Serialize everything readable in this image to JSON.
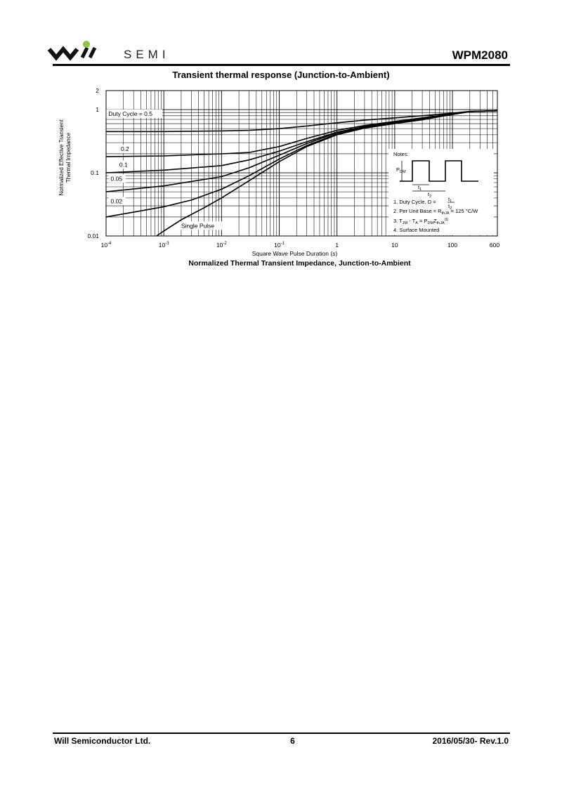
{
  "header": {
    "brand": "SEMI",
    "part_number": "WPM2080"
  },
  "section_title": "Transient thermal response (Junction-to-Ambient)",
  "chart_data": {
    "type": "line",
    "x_scale": "log",
    "y_scale": "log",
    "xlim": [
      0.0001,
      600
    ],
    "ylim": [
      0.01,
      2
    ],
    "xlabel": "Square Wave Pulse Duration (s)",
    "ylabel_lines": [
      "Normalized Effective Transient",
      "Thermal Impedance"
    ],
    "grid": true,
    "x_ticks": [
      {
        "value": 0.0001,
        "base": "10",
        "exp": "-4"
      },
      {
        "value": 0.001,
        "base": "10",
        "exp": "-3"
      },
      {
        "value": 0.01,
        "base": "10",
        "exp": "-2"
      },
      {
        "value": 0.1,
        "base": "10",
        "exp": "-1"
      },
      {
        "value": 1,
        "base": "1",
        "exp": ""
      },
      {
        "value": 10,
        "base": "10",
        "exp": ""
      },
      {
        "value": 100,
        "base": "100",
        "exp": ""
      },
      {
        "value": 600,
        "base": "600",
        "exp": ""
      }
    ],
    "y_ticks": [
      {
        "value": 2,
        "label": "2"
      },
      {
        "value": 1,
        "label": "1"
      },
      {
        "value": 0.1,
        "label": "0.1"
      },
      {
        "value": 0.01,
        "label": "0.01"
      }
    ],
    "series": [
      {
        "name": "Duty Cycle = 0.5",
        "x": [
          0.0001,
          0.001,
          0.01,
          0.03,
          0.1,
          0.3,
          1,
          3,
          10,
          30,
          100,
          200,
          600
        ],
        "y": [
          0.45,
          0.45,
          0.46,
          0.47,
          0.5,
          0.55,
          0.62,
          0.68,
          0.74,
          0.8,
          0.88,
          0.94,
          0.96
        ]
      },
      {
        "name": "0.2",
        "x": [
          0.0001,
          0.001,
          0.01,
          0.03,
          0.1,
          0.3,
          1,
          3,
          10,
          30,
          100,
          200,
          600
        ],
        "y": [
          0.18,
          0.185,
          0.2,
          0.21,
          0.26,
          0.35,
          0.47,
          0.56,
          0.65,
          0.74,
          0.86,
          0.93,
          0.96
        ]
      },
      {
        "name": "0.1",
        "x": [
          0.0001,
          0.001,
          0.01,
          0.03,
          0.1,
          0.3,
          1,
          3,
          10,
          30,
          100,
          200,
          600
        ],
        "y": [
          0.1,
          0.11,
          0.13,
          0.16,
          0.22,
          0.31,
          0.44,
          0.54,
          0.63,
          0.72,
          0.85,
          0.93,
          0.96
        ]
      },
      {
        "name": "0.05",
        "x": [
          0.0001,
          0.001,
          0.01,
          0.03,
          0.1,
          0.3,
          1,
          3,
          10,
          30,
          100,
          200,
          600
        ],
        "y": [
          0.05,
          0.062,
          0.087,
          0.12,
          0.19,
          0.29,
          0.43,
          0.53,
          0.62,
          0.71,
          0.84,
          0.93,
          0.96
        ]
      },
      {
        "name": "0.02",
        "x": [
          0.0001,
          0.001,
          0.003,
          0.01,
          0.03,
          0.1,
          0.3,
          1,
          3,
          10,
          30,
          100,
          200,
          600
        ],
        "y": [
          0.02,
          0.029,
          0.037,
          0.055,
          0.09,
          0.165,
          0.27,
          0.41,
          0.52,
          0.61,
          0.7,
          0.84,
          0.93,
          0.96
        ]
      },
      {
        "name": "Single Pulse",
        "x": [
          0.00075,
          0.001,
          0.002,
          0.005,
          0.01,
          0.03,
          0.1,
          0.3,
          1,
          3,
          10,
          30,
          100,
          200,
          600
        ],
        "y": [
          0.01,
          0.012,
          0.018,
          0.028,
          0.04,
          0.075,
          0.15,
          0.26,
          0.4,
          0.51,
          0.6,
          0.69,
          0.84,
          0.93,
          0.96
        ]
      }
    ],
    "notes": {
      "heading": "Notes:",
      "pdm": "P",
      "pdm_sub": "DM",
      "t1": "t",
      "t1_sub": "1",
      "t2": "t",
      "t2_sub": "2",
      "note1": "1. Duty Cycle, D =",
      "note2": "2. Per Unit Base = R",
      "note2_sub": "thJA",
      "note2_end": " = 125 °C/W",
      "note3_a": "3. T",
      "note3_a_sub": "JM",
      "note3_b": " - T",
      "note3_b_sub": "A",
      "note3_c": " = P",
      "note3_c_sub": "DM",
      "note3_d": "Z",
      "note3_d_sub": "thJA",
      "note3_sup": "(t)",
      "note4": "4. Surface Mounted"
    }
  },
  "caption": "Normalized Thermal Transient Impedance, Junction-to-Ambient",
  "footer": {
    "company": "Will Semiconductor Ltd.",
    "page": "6",
    "date_rev": "2016/05/30- Rev.1.0"
  }
}
